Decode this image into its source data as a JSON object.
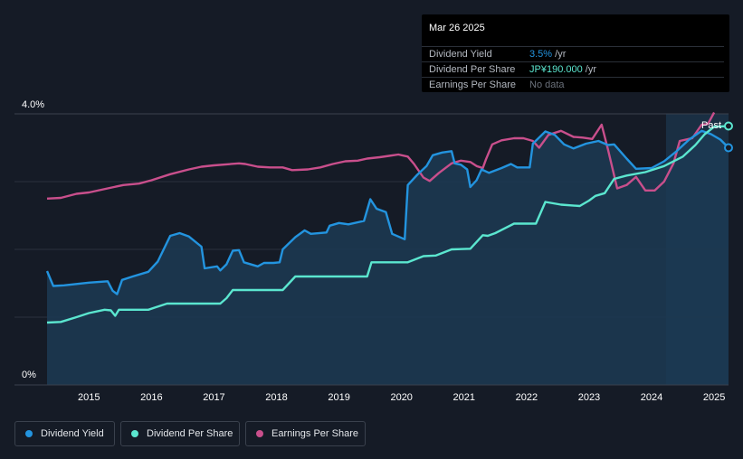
{
  "tooltip": {
    "date": "Mar 26 2025",
    "rows": [
      {
        "label": "Dividend Yield",
        "value": "3.5%",
        "unit": " /yr"
      },
      {
        "label": "Dividend Per Share",
        "value": "JP¥190.000",
        "unit": " /yr"
      },
      {
        "label": "Earnings Per Share",
        "value": "No data",
        "unit": ""
      }
    ]
  },
  "legend": [
    {
      "label": "Dividend Yield"
    },
    {
      "label": "Dividend Per Share"
    },
    {
      "label": "Earnings Per Share"
    }
  ],
  "colors": {
    "background": "#151b26",
    "dividend_yield": "#2394df",
    "dividend_per_share": "#5be6cf",
    "earnings_per_share": "#c94f8c",
    "yield_fill": "#1c3a54",
    "forecast_shade": "#1a2f43",
    "grid": "#2b323e",
    "axis_text": "#ffffff",
    "muted_text": "#b3b8c0"
  },
  "chart_data": {
    "type": "line",
    "title": "",
    "xlabel": "",
    "ylabel": "",
    "y_axis_labels": [
      "4.0%",
      "0%"
    ],
    "ylim": [
      0,
      4.0
    ],
    "xlim": [
      2014.33,
      2025.23
    ],
    "x_ticks": [
      2015,
      2016,
      2017,
      2018,
      2019,
      2020,
      2021,
      2022,
      2023,
      2024,
      2025
    ],
    "x_tick_labels": [
      "2015",
      "2016",
      "2017",
      "2018",
      "2019",
      "2020",
      "2021",
      "2022",
      "2023",
      "2024",
      "2025"
    ],
    "past_region_start": 2024.23,
    "past_label": "Past",
    "series": [
      {
        "name": "Dividend Yield",
        "unit": "%",
        "points": [
          [
            2014.33,
            1.68
          ],
          [
            2014.43,
            1.46
          ],
          [
            2014.6,
            1.47
          ],
          [
            2015.0,
            1.51
          ],
          [
            2015.3,
            1.53
          ],
          [
            2015.38,
            1.39
          ],
          [
            2015.45,
            1.34
          ],
          [
            2015.53,
            1.55
          ],
          [
            2015.7,
            1.6
          ],
          [
            2015.95,
            1.67
          ],
          [
            2016.1,
            1.82
          ],
          [
            2016.3,
            2.2
          ],
          [
            2016.45,
            2.24
          ],
          [
            2016.6,
            2.19
          ],
          [
            2016.8,
            2.04
          ],
          [
            2016.85,
            1.72
          ],
          [
            2017.05,
            1.75
          ],
          [
            2017.1,
            1.69
          ],
          [
            2017.2,
            1.78
          ],
          [
            2017.3,
            1.98
          ],
          [
            2017.4,
            1.99
          ],
          [
            2017.48,
            1.81
          ],
          [
            2017.7,
            1.75
          ],
          [
            2017.8,
            1.8
          ],
          [
            2017.95,
            1.8
          ],
          [
            2018.05,
            1.81
          ],
          [
            2018.1,
            2.0
          ],
          [
            2018.3,
            2.18
          ],
          [
            2018.45,
            2.28
          ],
          [
            2018.55,
            2.23
          ],
          [
            2018.8,
            2.25
          ],
          [
            2018.85,
            2.35
          ],
          [
            2019.0,
            2.39
          ],
          [
            2019.15,
            2.37
          ],
          [
            2019.4,
            2.42
          ],
          [
            2019.5,
            2.74
          ],
          [
            2019.6,
            2.6
          ],
          [
            2019.75,
            2.55
          ],
          [
            2019.85,
            2.23
          ],
          [
            2020.05,
            2.15
          ],
          [
            2020.1,
            2.95
          ],
          [
            2020.25,
            3.1
          ],
          [
            2020.4,
            3.23
          ],
          [
            2020.5,
            3.39
          ],
          [
            2020.65,
            3.43
          ],
          [
            2020.8,
            3.45
          ],
          [
            2020.85,
            3.27
          ],
          [
            2020.95,
            3.25
          ],
          [
            2021.05,
            3.18
          ],
          [
            2021.1,
            2.92
          ],
          [
            2021.2,
            3.02
          ],
          [
            2021.28,
            3.18
          ],
          [
            2021.4,
            3.13
          ],
          [
            2021.6,
            3.2
          ],
          [
            2021.75,
            3.26
          ],
          [
            2021.85,
            3.21
          ],
          [
            2022.05,
            3.21
          ],
          [
            2022.1,
            3.56
          ],
          [
            2022.3,
            3.74
          ],
          [
            2022.45,
            3.69
          ],
          [
            2022.6,
            3.55
          ],
          [
            2022.75,
            3.49
          ],
          [
            2022.95,
            3.56
          ],
          [
            2023.15,
            3.6
          ],
          [
            2023.3,
            3.54
          ],
          [
            2023.4,
            3.55
          ],
          [
            2023.6,
            3.34
          ],
          [
            2023.75,
            3.19
          ],
          [
            2024.0,
            3.2
          ],
          [
            2024.2,
            3.3
          ],
          [
            2024.4,
            3.45
          ],
          [
            2024.6,
            3.62
          ],
          [
            2024.8,
            3.75
          ],
          [
            2024.95,
            3.7
          ],
          [
            2025.1,
            3.62
          ],
          [
            2025.23,
            3.5
          ]
        ]
      },
      {
        "name": "Dividend Per Share",
        "unit": "JP¥",
        "points": [
          [
            2014.33,
            0.92
          ],
          [
            2014.55,
            0.93
          ],
          [
            2014.8,
            1.0
          ],
          [
            2015.0,
            1.06
          ],
          [
            2015.25,
            1.11
          ],
          [
            2015.35,
            1.1
          ],
          [
            2015.42,
            1.02
          ],
          [
            2015.48,
            1.11
          ],
          [
            2015.95,
            1.11
          ],
          [
            2016.05,
            1.14
          ],
          [
            2016.25,
            1.2
          ],
          [
            2017.1,
            1.2
          ],
          [
            2017.2,
            1.28
          ],
          [
            2017.3,
            1.4
          ],
          [
            2018.1,
            1.4
          ],
          [
            2018.3,
            1.6
          ],
          [
            2019.45,
            1.6
          ],
          [
            2019.52,
            1.81
          ],
          [
            2020.1,
            1.81
          ],
          [
            2020.35,
            1.9
          ],
          [
            2020.55,
            1.91
          ],
          [
            2020.8,
            2.0
          ],
          [
            2021.1,
            2.01
          ],
          [
            2021.3,
            2.21
          ],
          [
            2021.38,
            2.2
          ],
          [
            2021.5,
            2.24
          ],
          [
            2021.8,
            2.38
          ],
          [
            2022.15,
            2.38
          ],
          [
            2022.3,
            2.7
          ],
          [
            2022.55,
            2.66
          ],
          [
            2022.85,
            2.64
          ],
          [
            2023.0,
            2.72
          ],
          [
            2023.1,
            2.79
          ],
          [
            2023.25,
            2.83
          ],
          [
            2023.4,
            3.04
          ],
          [
            2023.6,
            3.09
          ],
          [
            2023.9,
            3.14
          ],
          [
            2024.2,
            3.23
          ],
          [
            2024.5,
            3.37
          ],
          [
            2024.7,
            3.54
          ],
          [
            2024.85,
            3.7
          ],
          [
            2025.0,
            3.81
          ],
          [
            2025.23,
            3.82
          ]
        ]
      },
      {
        "name": "Earnings Per Share",
        "unit": "JP¥",
        "points": [
          [
            2014.33,
            2.75
          ],
          [
            2014.55,
            2.76
          ],
          [
            2014.8,
            2.82
          ],
          [
            2015.0,
            2.84
          ],
          [
            2015.3,
            2.9
          ],
          [
            2015.55,
            2.95
          ],
          [
            2015.8,
            2.97
          ],
          [
            2016.0,
            3.02
          ],
          [
            2016.3,
            3.11
          ],
          [
            2016.6,
            3.18
          ],
          [
            2016.8,
            3.22
          ],
          [
            2017.0,
            3.24
          ],
          [
            2017.4,
            3.27
          ],
          [
            2017.5,
            3.26
          ],
          [
            2017.7,
            3.22
          ],
          [
            2017.9,
            3.21
          ],
          [
            2018.1,
            3.21
          ],
          [
            2018.25,
            3.17
          ],
          [
            2018.5,
            3.18
          ],
          [
            2018.7,
            3.21
          ],
          [
            2018.9,
            3.26
          ],
          [
            2019.1,
            3.3
          ],
          [
            2019.3,
            3.31
          ],
          [
            2019.45,
            3.34
          ],
          [
            2019.65,
            3.36
          ],
          [
            2019.8,
            3.38
          ],
          [
            2019.95,
            3.4
          ],
          [
            2020.1,
            3.37
          ],
          [
            2020.2,
            3.26
          ],
          [
            2020.35,
            3.06
          ],
          [
            2020.45,
            3.01
          ],
          [
            2020.6,
            3.13
          ],
          [
            2020.8,
            3.27
          ],
          [
            2020.95,
            3.31
          ],
          [
            2021.1,
            3.29
          ],
          [
            2021.2,
            3.23
          ],
          [
            2021.3,
            3.2
          ],
          [
            2021.35,
            3.33
          ],
          [
            2021.45,
            3.55
          ],
          [
            2021.6,
            3.61
          ],
          [
            2021.8,
            3.64
          ],
          [
            2021.95,
            3.64
          ],
          [
            2022.1,
            3.6
          ],
          [
            2022.2,
            3.5
          ],
          [
            2022.35,
            3.69
          ],
          [
            2022.55,
            3.75
          ],
          [
            2022.75,
            3.66
          ],
          [
            2022.9,
            3.65
          ],
          [
            2023.05,
            3.63
          ],
          [
            2023.2,
            3.84
          ],
          [
            2023.3,
            3.48
          ],
          [
            2023.45,
            2.9
          ],
          [
            2023.6,
            2.95
          ],
          [
            2023.75,
            3.07
          ],
          [
            2023.9,
            2.87
          ],
          [
            2024.05,
            2.87
          ],
          [
            2024.2,
            3.0
          ],
          [
            2024.35,
            3.27
          ],
          [
            2024.45,
            3.6
          ],
          [
            2024.65,
            3.64
          ],
          [
            2024.8,
            3.84
          ],
          [
            2024.9,
            3.85
          ],
          [
            2025.0,
            4.02
          ]
        ]
      }
    ]
  }
}
